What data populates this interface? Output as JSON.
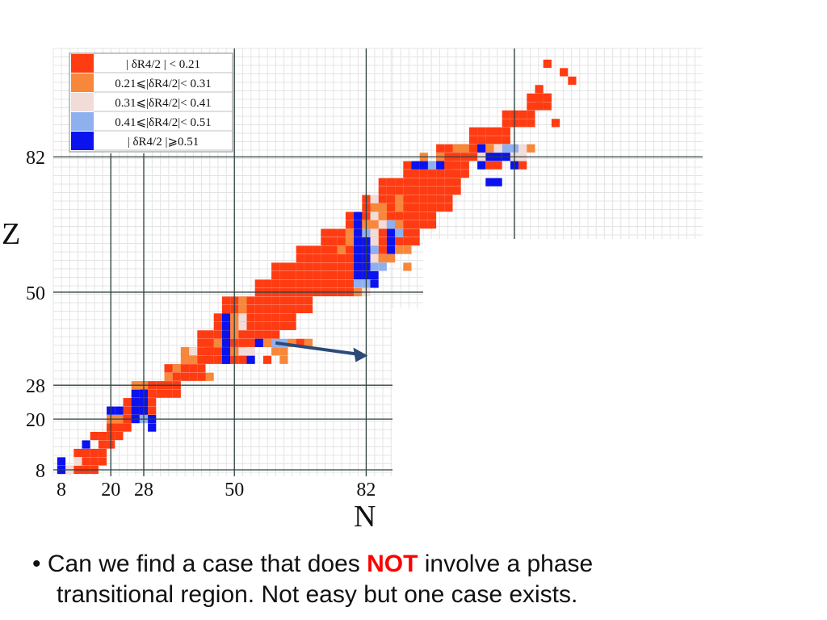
{
  "colors": {
    "bin1": "#ff3b12",
    "bin2": "#f7873a",
    "bin3": "#f2dcd8",
    "bin4": "#8fb0ef",
    "bin5": "#0a12ee",
    "arrow": "#2c4a78",
    "highlight": "#ff0000"
  },
  "chart_data": {
    "type": "heatmap",
    "xlabel": "N",
    "ylabel": "Z",
    "xlim": [
      4,
      134
    ],
    "ylim": [
      4,
      106
    ],
    "x_ticks": [
      8,
      20,
      28,
      50,
      82
    ],
    "y_ticks": [
      8,
      20,
      28,
      50,
      82
    ],
    "grid": "fine grid with magic-number lines",
    "legend": {
      "placement": "top-left",
      "entries": [
        {
          "label": "| δR4/2 | < 0.21",
          "color": "#ff3b12"
        },
        {
          "label": "0.21⩽|δR4/2|< 0.31",
          "color": "#f7873a"
        },
        {
          "label": "0.31⩽|δR4/2|< 0.41",
          "color": "#f2dcd8"
        },
        {
          "label": "0.41⩽|δR4/2|< 0.51",
          "color": "#8fb0ef"
        },
        {
          "label": "| δR4/2 |⩾0.51",
          "color": "#0a12ee"
        }
      ]
    },
    "bands": [
      {
        "z": [
          8,
          10
        ],
        "n0": 8,
        "n1": 18
      },
      {
        "z": [
          10,
          14
        ],
        "n0": 14,
        "n1": 20
      },
      {
        "z": [
          14,
          18
        ],
        "n0": 18,
        "n1": 22
      },
      {
        "z": [
          18,
          22
        ],
        "n0": 20,
        "n1": 26
      },
      {
        "z": [
          22,
          26
        ],
        "n0": 24,
        "n1": 32
      },
      {
        "z": [
          26,
          30
        ],
        "n0": 28,
        "n1": 38
      },
      {
        "z": [
          30,
          34
        ],
        "n0": 34,
        "n1": 44
      },
      {
        "z": [
          34,
          38
        ],
        "n0": 38,
        "n1": 54
      },
      {
        "z": [
          38,
          42
        ],
        "n0": 42,
        "n1": 62
      },
      {
        "z": [
          42,
          46
        ],
        "n0": 46,
        "n1": 66
      },
      {
        "z": [
          46,
          50
        ],
        "n0": 48,
        "n1": 70
      },
      {
        "z": [
          50,
          54
        ],
        "n0": 56,
        "n1": 80
      },
      {
        "z": [
          54,
          58
        ],
        "n0": 60,
        "n1": 84
      },
      {
        "z": [
          58,
          62
        ],
        "n0": 66,
        "n1": 90
      },
      {
        "z": [
          62,
          66
        ],
        "n0": 72,
        "n1": 96
      },
      {
        "z": [
          66,
          70
        ],
        "n0": 78,
        "n1": 100
      },
      {
        "z": [
          70,
          74
        ],
        "n0": 82,
        "n1": 104
      },
      {
        "z": [
          74,
          78
        ],
        "n0": 86,
        "n1": 106
      },
      {
        "z": [
          78,
          82
        ],
        "n0": 92,
        "n1": 108
      },
      {
        "z": [
          82,
          86
        ],
        "n0": 100,
        "n1": 112
      },
      {
        "z": [
          86,
          90
        ],
        "n0": 108,
        "n1": 118
      },
      {
        "z": [
          90,
          94
        ],
        "n0": 116,
        "n1": 124
      },
      {
        "z": [
          94,
          98
        ],
        "n0": 122,
        "n1": 128
      }
    ],
    "cells": [
      {
        "n": 8,
        "z": 8,
        "bin": 5
      },
      {
        "n": 8,
        "z": 10,
        "bin": 5
      },
      {
        "n": 10,
        "z": 8,
        "bin": 3
      },
      {
        "n": 12,
        "z": 10,
        "bin": 3
      },
      {
        "n": 12,
        "z": 12,
        "bin": 1
      },
      {
        "n": 14,
        "z": 14,
        "bin": 5
      },
      {
        "n": 16,
        "z": 16,
        "bin": 1
      },
      {
        "n": 20,
        "z": 18,
        "bin": 1
      },
      {
        "n": 20,
        "z": 20,
        "bin": 2
      },
      {
        "n": 20,
        "z": 22,
        "bin": 5
      },
      {
        "n": 22,
        "z": 20,
        "bin": 2
      },
      {
        "n": 22,
        "z": 22,
        "bin": 5
      },
      {
        "n": 24,
        "z": 20,
        "bin": 1
      },
      {
        "n": 26,
        "z": 20,
        "bin": 5
      },
      {
        "n": 26,
        "z": 22,
        "bin": 5
      },
      {
        "n": 26,
        "z": 24,
        "bin": 5
      },
      {
        "n": 26,
        "z": 26,
        "bin": 5
      },
      {
        "n": 26,
        "z": 28,
        "bin": 2
      },
      {
        "n": 28,
        "z": 20,
        "bin": 4
      },
      {
        "n": 28,
        "z": 22,
        "bin": 5
      },
      {
        "n": 28,
        "z": 24,
        "bin": 5
      },
      {
        "n": 28,
        "z": 26,
        "bin": 5
      },
      {
        "n": 28,
        "z": 28,
        "bin": 2
      },
      {
        "n": 30,
        "z": 20,
        "bin": 5
      },
      {
        "n": 34,
        "z": 30,
        "bin": 2
      },
      {
        "n": 36,
        "z": 32,
        "bin": 2
      },
      {
        "n": 38,
        "z": 34,
        "bin": 2
      },
      {
        "n": 38,
        "z": 36,
        "bin": 2
      },
      {
        "n": 40,
        "z": 36,
        "bin": 3
      },
      {
        "n": 40,
        "z": 34,
        "bin": 2
      },
      {
        "n": 44,
        "z": 30,
        "bin": 2
      },
      {
        "n": 48,
        "z": 34,
        "bin": 5
      },
      {
        "n": 48,
        "z": 36,
        "bin": 5
      },
      {
        "n": 48,
        "z": 38,
        "bin": 5
      },
      {
        "n": 48,
        "z": 40,
        "bin": 5
      },
      {
        "n": 48,
        "z": 42,
        "bin": 5
      },
      {
        "n": 48,
        "z": 44,
        "bin": 5
      },
      {
        "n": 50,
        "z": 36,
        "bin": 2
      },
      {
        "n": 52,
        "z": 36,
        "bin": 3
      },
      {
        "n": 50,
        "z": 40,
        "bin": 2
      },
      {
        "n": 50,
        "z": 42,
        "bin": 2
      },
      {
        "n": 50,
        "z": 44,
        "bin": 2
      },
      {
        "n": 52,
        "z": 42,
        "bin": 3
      },
      {
        "n": 52,
        "z": 44,
        "bin": 3
      },
      {
        "n": 52,
        "z": 46,
        "bin": 2
      },
      {
        "n": 52,
        "z": 48,
        "bin": 2
      },
      {
        "n": 54,
        "z": 36,
        "bin": 3
      },
      {
        "n": 56,
        "z": 38,
        "bin": 5
      },
      {
        "n": 58,
        "z": 38,
        "bin": 2
      },
      {
        "n": 60,
        "z": 38,
        "bin": 4
      },
      {
        "n": 62,
        "z": 38,
        "bin": 4
      },
      {
        "n": 62,
        "z": 36,
        "bin": 2
      },
      {
        "n": 64,
        "z": 38,
        "bin": 2
      },
      {
        "n": 54,
        "z": 34,
        "bin": 5
      },
      {
        "n": 58,
        "z": 34,
        "bin": 1
      },
      {
        "n": 62,
        "z": 34,
        "bin": 2
      },
      {
        "n": 60,
        "z": 36,
        "bin": 2
      },
      {
        "n": 76,
        "z": 60,
        "bin": 2
      },
      {
        "n": 78,
        "z": 62,
        "bin": 2
      },
      {
        "n": 78,
        "z": 64,
        "bin": 2
      },
      {
        "n": 80,
        "z": 50,
        "bin": 2
      },
      {
        "n": 80,
        "z": 52,
        "bin": 4
      },
      {
        "n": 80,
        "z": 54,
        "bin": 5
      },
      {
        "n": 80,
        "z": 56,
        "bin": 5
      },
      {
        "n": 80,
        "z": 58,
        "bin": 5
      },
      {
        "n": 80,
        "z": 60,
        "bin": 5
      },
      {
        "n": 80,
        "z": 62,
        "bin": 5
      },
      {
        "n": 80,
        "z": 64,
        "bin": 5
      },
      {
        "n": 80,
        "z": 66,
        "bin": 5
      },
      {
        "n": 80,
        "z": 68,
        "bin": 5
      },
      {
        "n": 82,
        "z": 50,
        "bin": 3
      },
      {
        "n": 82,
        "z": 52,
        "bin": 4
      },
      {
        "n": 82,
        "z": 54,
        "bin": 5
      },
      {
        "n": 82,
        "z": 56,
        "bin": 5
      },
      {
        "n": 82,
        "z": 58,
        "bin": 5
      },
      {
        "n": 82,
        "z": 60,
        "bin": 5
      },
      {
        "n": 82,
        "z": 62,
        "bin": 5
      },
      {
        "n": 82,
        "z": 64,
        "bin": 4
      },
      {
        "n": 82,
        "z": 66,
        "bin": 2
      },
      {
        "n": 84,
        "z": 52,
        "bin": 5
      },
      {
        "n": 84,
        "z": 54,
        "bin": 5
      },
      {
        "n": 84,
        "z": 56,
        "bin": 4
      },
      {
        "n": 84,
        "z": 58,
        "bin": 3
      },
      {
        "n": 84,
        "z": 60,
        "bin": 4
      },
      {
        "n": 84,
        "z": 62,
        "bin": 3
      },
      {
        "n": 84,
        "z": 64,
        "bin": 3
      },
      {
        "n": 84,
        "z": 66,
        "bin": 2
      },
      {
        "n": 84,
        "z": 68,
        "bin": 3
      },
      {
        "n": 84,
        "z": 70,
        "bin": 2
      },
      {
        "n": 84,
        "z": 72,
        "bin": 3
      },
      {
        "n": 86,
        "z": 56,
        "bin": 4
      },
      {
        "n": 86,
        "z": 58,
        "bin": 2
      },
      {
        "n": 86,
        "z": 66,
        "bin": 3
      },
      {
        "n": 86,
        "z": 68,
        "bin": 2
      },
      {
        "n": 86,
        "z": 70,
        "bin": 2
      },
      {
        "n": 88,
        "z": 58,
        "bin": 2
      },
      {
        "n": 88,
        "z": 60,
        "bin": 5
      },
      {
        "n": 88,
        "z": 62,
        "bin": 5
      },
      {
        "n": 88,
        "z": 64,
        "bin": 5
      },
      {
        "n": 88,
        "z": 66,
        "bin": 4
      },
      {
        "n": 90,
        "z": 60,
        "bin": 2
      },
      {
        "n": 90,
        "z": 64,
        "bin": 4
      },
      {
        "n": 90,
        "z": 66,
        "bin": 2
      },
      {
        "n": 90,
        "z": 70,
        "bin": 2
      },
      {
        "n": 90,
        "z": 72,
        "bin": 2
      },
      {
        "n": 92,
        "z": 56,
        "bin": 2
      },
      {
        "n": 92,
        "z": 60,
        "bin": 2
      },
      {
        "n": 112,
        "z": 82,
        "bin": 5
      },
      {
        "n": 114,
        "z": 82,
        "bin": 5
      },
      {
        "n": 116,
        "z": 82,
        "bin": 5
      },
      {
        "n": 118,
        "z": 84,
        "bin": 4
      },
      {
        "n": 110,
        "z": 84,
        "bin": 5
      },
      {
        "n": 112,
        "z": 84,
        "bin": 2
      },
      {
        "n": 118,
        "z": 82,
        "bin": 3
      },
      {
        "n": 120,
        "z": 84,
        "bin": 3
      },
      {
        "n": 116,
        "z": 84,
        "bin": 4
      },
      {
        "n": 114,
        "z": 84,
        "bin": 3
      },
      {
        "n": 122,
        "z": 84,
        "bin": 2
      },
      {
        "n": 128,
        "z": 90,
        "bin": 1
      },
      {
        "n": 112,
        "z": 76,
        "bin": 5
      },
      {
        "n": 114,
        "z": 76,
        "bin": 5
      },
      {
        "n": 118,
        "z": 80,
        "bin": 5
      },
      {
        "n": 120,
        "z": 82,
        "bin": 3
      },
      {
        "n": 120,
        "z": 80,
        "bin": 1
      },
      {
        "n": 94,
        "z": 80,
        "bin": 5
      },
      {
        "n": 96,
        "z": 80,
        "bin": 5
      },
      {
        "n": 98,
        "z": 80,
        "bin": 4
      },
      {
        "n": 100,
        "z": 80,
        "bin": 5
      },
      {
        "n": 102,
        "z": 80,
        "bin": 1
      },
      {
        "n": 96,
        "z": 82,
        "bin": 2
      },
      {
        "n": 100,
        "z": 82,
        "bin": 2
      },
      {
        "n": 104,
        "z": 84,
        "bin": 2
      },
      {
        "n": 106,
        "z": 84,
        "bin": 2
      },
      {
        "n": 110,
        "z": 80,
        "bin": 5
      },
      {
        "n": 110,
        "z": 82,
        "bin": 3
      },
      {
        "n": 112,
        "z": 80,
        "bin": 1
      },
      {
        "n": 114,
        "z": 80,
        "bin": 1
      },
      {
        "n": 66,
        "z": 38,
        "bin": 1
      },
      {
        "n": 68,
        "z": 38,
        "bin": 2
      },
      {
        "n": 44,
        "z": 36,
        "bin": 1
      },
      {
        "n": 46,
        "z": 38,
        "bin": 2
      },
      {
        "n": 30,
        "z": 18,
        "bin": 5
      },
      {
        "n": 22,
        "z": 16,
        "bin": 1
      },
      {
        "n": 124,
        "z": 94,
        "bin": 1
      },
      {
        "n": 126,
        "z": 96,
        "bin": 1
      },
      {
        "n": 124,
        "z": 98,
        "bin": 1
      },
      {
        "n": 132,
        "z": 100,
        "bin": 1
      },
      {
        "n": 130,
        "z": 102,
        "bin": 1
      },
      {
        "n": 126,
        "z": 104,
        "bin": 1
      }
    ],
    "arrow": {
      "from": [
        60,
        38
      ],
      "to": [
        82,
        35
      ]
    }
  },
  "caption": {
    "prefix": "• Can we find a case that does ",
    "highlight": "NOT",
    "suffix": " involve a phase",
    "line2": "transitional region.  Not easy but one case exists."
  }
}
